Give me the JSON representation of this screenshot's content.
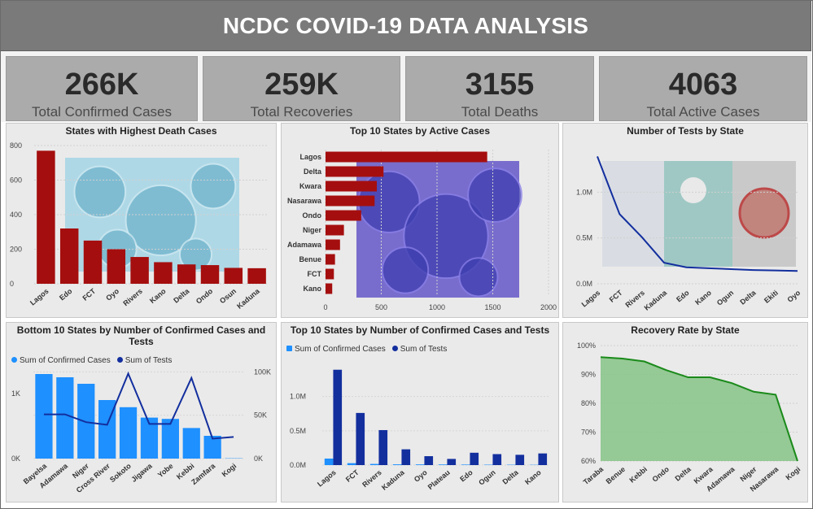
{
  "header": {
    "title": "NCDC COVID-19 DATA ANALYSIS"
  },
  "kpis": [
    {
      "value": "266K",
      "label": "Total Confirmed Cases"
    },
    {
      "value": "259K",
      "label": "Total Recoveries"
    },
    {
      "value": "3155",
      "label": "Total Deaths"
    },
    {
      "value": "4063",
      "label": "Total Active Cases"
    }
  ],
  "colors": {
    "dark_red": "#a50e0e",
    "light_blue": "#1e90ff",
    "navy": "#132f9e",
    "green": "#1a8a1a",
    "green_fill": "#86c386",
    "header": "#7a7a7a",
    "kpi_bg": "#ababab"
  },
  "chart_data": [
    {
      "id": "deaths",
      "type": "bar",
      "title": "States with Highest Death Cases",
      "categories": [
        "Lagos",
        "Edo",
        "FCT",
        "Oyo",
        "Rivers",
        "Kano",
        "Delta",
        "Ondo",
        "Osun",
        "Kaduna"
      ],
      "values": [
        770,
        320,
        250,
        200,
        155,
        125,
        112,
        108,
        92,
        90
      ],
      "ylim": [
        0,
        800
      ],
      "yticks": [
        "0",
        "200",
        "400",
        "600",
        "800"
      ],
      "background_image": "virus-image"
    },
    {
      "id": "active",
      "type": "bar",
      "orientation": "horizontal",
      "title": "Top 10 States by Active Cases",
      "categories": [
        "Lagos",
        "Delta",
        "Kwara",
        "Nasarawa",
        "Ondo",
        "Niger",
        "Adamawa",
        "Benue",
        "FCT",
        "Kano"
      ],
      "values": [
        1450,
        520,
        460,
        440,
        320,
        165,
        130,
        85,
        75,
        60
      ],
      "xlim": [
        0,
        2000
      ],
      "xticks": [
        "0",
        "500",
        "1000",
        "1500",
        "2000"
      ],
      "background_image": "virus-image"
    },
    {
      "id": "tests",
      "type": "line",
      "title": "Number of Tests by State",
      "categories": [
        "Lagos",
        "FCT",
        "Rivers",
        "Kaduna",
        "Edo",
        "Kano",
        "Ogun",
        "Delta",
        "Ekiti",
        "Oyo"
      ],
      "values": [
        1390000,
        760000,
        510000,
        230000,
        180000,
        170000,
        160000,
        150000,
        145000,
        140000
      ],
      "ylim": [
        0,
        1500000
      ],
      "yticks": [
        "0.0M",
        "0.5M",
        "1.0M"
      ],
      "background_image": "lab-image"
    },
    {
      "id": "bottom10",
      "type": "bar",
      "title": "Bottom 10 States by Number of Confirmed Cases and Tests",
      "categories": [
        "Bayelsa",
        "Adamawa",
        "Niger",
        "Cross River",
        "Sokoto",
        "Jigawa",
        "Yobe",
        "Kebbi",
        "Zamfara",
        "Kogi"
      ],
      "series": [
        {
          "name": "Sum of Confirmed Cases",
          "values": [
            1300,
            1250,
            1150,
            900,
            790,
            630,
            610,
            470,
            350,
            5
          ]
        },
        {
          "name": "Sum of Tests",
          "values": [
            51000,
            51000,
            42000,
            39000,
            98000,
            40000,
            40000,
            93000,
            23000,
            25000
          ]
        }
      ],
      "y_left_ticks": [
        "0K",
        "1K"
      ],
      "y_right_ticks": [
        "0K",
        "50K",
        "100K"
      ]
    },
    {
      "id": "top10",
      "type": "bar",
      "title": "Top 10 States by Number of Confirmed Cases and Tests",
      "categories": [
        "Lagos",
        "FCT",
        "Rivers",
        "Kaduna",
        "Oyo",
        "Plateau",
        "Edo",
        "Ogun",
        "Delta",
        "Kano"
      ],
      "series": [
        {
          "name": "Sum of Confirmed Cases",
          "values": [
            95000,
            28000,
            17000,
            11000,
            10000,
            9000,
            7500,
            5800,
            5200,
            4000
          ]
        },
        {
          "name": "Sum of Tests",
          "values": [
            1390000,
            760000,
            510000,
            230000,
            130000,
            90000,
            180000,
            160000,
            150000,
            170000
          ]
        }
      ],
      "ylim": [
        0,
        1600000
      ],
      "yticks": [
        "0.0M",
        "0.5M",
        "1.0M"
      ]
    },
    {
      "id": "recovery",
      "type": "area",
      "title": "Recovery Rate by State",
      "categories": [
        "Taraba",
        "Benue",
        "Kebbi",
        "Ondo",
        "Delta",
        "Kwara",
        "Adamawa",
        "Niger",
        "Nasarawa",
        "Kogi"
      ],
      "values": [
        96,
        95.5,
        94.5,
        91.5,
        89,
        89,
        87,
        84,
        83,
        60
      ],
      "ylim": [
        60,
        100
      ],
      "yticks": [
        "60%",
        "70%",
        "80%",
        "90%",
        "100%"
      ]
    }
  ]
}
